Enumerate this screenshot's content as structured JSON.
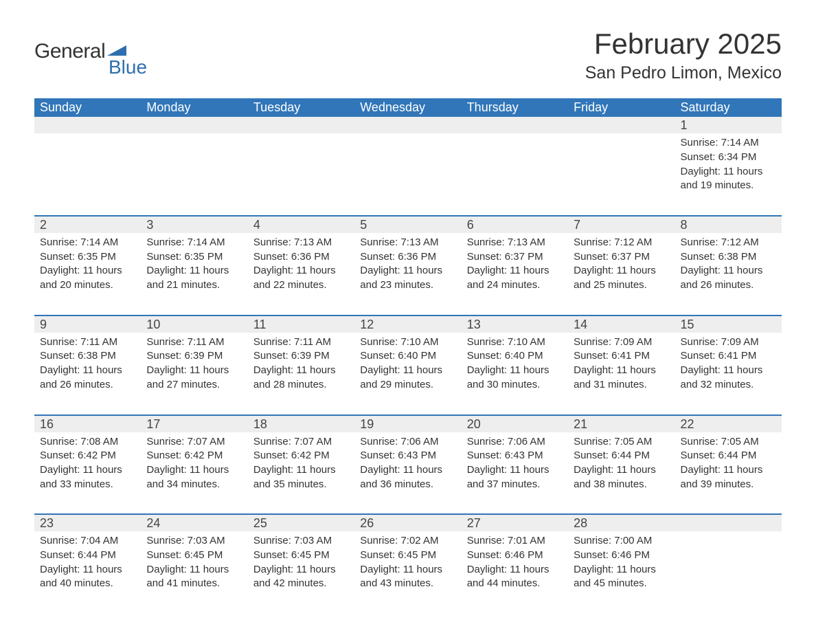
{
  "brand": {
    "line1": "General",
    "line2": "Blue",
    "logo_color": "#2f6faf"
  },
  "title": "February 2025",
  "location": "San Pedro Limon, Mexico",
  "colors": {
    "header_bg": "#3176b9",
    "header_text": "#ffffff",
    "daynum_bg": "#eeeeee",
    "week_divider": "#3176b9",
    "body_text": "#333333",
    "page_bg": "#ffffff"
  },
  "calendar": {
    "columns": [
      "Sunday",
      "Monday",
      "Tuesday",
      "Wednesday",
      "Thursday",
      "Friday",
      "Saturday"
    ],
    "weeks": [
      [
        null,
        null,
        null,
        null,
        null,
        null,
        {
          "day": 1,
          "sunrise": "7:14 AM",
          "sunset": "6:34 PM",
          "daylight": "11 hours and 19 minutes."
        }
      ],
      [
        {
          "day": 2,
          "sunrise": "7:14 AM",
          "sunset": "6:35 PM",
          "daylight": "11 hours and 20 minutes."
        },
        {
          "day": 3,
          "sunrise": "7:14 AM",
          "sunset": "6:35 PM",
          "daylight": "11 hours and 21 minutes."
        },
        {
          "day": 4,
          "sunrise": "7:13 AM",
          "sunset": "6:36 PM",
          "daylight": "11 hours and 22 minutes."
        },
        {
          "day": 5,
          "sunrise": "7:13 AM",
          "sunset": "6:36 PM",
          "daylight": "11 hours and 23 minutes."
        },
        {
          "day": 6,
          "sunrise": "7:13 AM",
          "sunset": "6:37 PM",
          "daylight": "11 hours and 24 minutes."
        },
        {
          "day": 7,
          "sunrise": "7:12 AM",
          "sunset": "6:37 PM",
          "daylight": "11 hours and 25 minutes."
        },
        {
          "day": 8,
          "sunrise": "7:12 AM",
          "sunset": "6:38 PM",
          "daylight": "11 hours and 26 minutes."
        }
      ],
      [
        {
          "day": 9,
          "sunrise": "7:11 AM",
          "sunset": "6:38 PM",
          "daylight": "11 hours and 26 minutes."
        },
        {
          "day": 10,
          "sunrise": "7:11 AM",
          "sunset": "6:39 PM",
          "daylight": "11 hours and 27 minutes."
        },
        {
          "day": 11,
          "sunrise": "7:11 AM",
          "sunset": "6:39 PM",
          "daylight": "11 hours and 28 minutes."
        },
        {
          "day": 12,
          "sunrise": "7:10 AM",
          "sunset": "6:40 PM",
          "daylight": "11 hours and 29 minutes."
        },
        {
          "day": 13,
          "sunrise": "7:10 AM",
          "sunset": "6:40 PM",
          "daylight": "11 hours and 30 minutes."
        },
        {
          "day": 14,
          "sunrise": "7:09 AM",
          "sunset": "6:41 PM",
          "daylight": "11 hours and 31 minutes."
        },
        {
          "day": 15,
          "sunrise": "7:09 AM",
          "sunset": "6:41 PM",
          "daylight": "11 hours and 32 minutes."
        }
      ],
      [
        {
          "day": 16,
          "sunrise": "7:08 AM",
          "sunset": "6:42 PM",
          "daylight": "11 hours and 33 minutes."
        },
        {
          "day": 17,
          "sunrise": "7:07 AM",
          "sunset": "6:42 PM",
          "daylight": "11 hours and 34 minutes."
        },
        {
          "day": 18,
          "sunrise": "7:07 AM",
          "sunset": "6:42 PM",
          "daylight": "11 hours and 35 minutes."
        },
        {
          "day": 19,
          "sunrise": "7:06 AM",
          "sunset": "6:43 PM",
          "daylight": "11 hours and 36 minutes."
        },
        {
          "day": 20,
          "sunrise": "7:06 AM",
          "sunset": "6:43 PM",
          "daylight": "11 hours and 37 minutes."
        },
        {
          "day": 21,
          "sunrise": "7:05 AM",
          "sunset": "6:44 PM",
          "daylight": "11 hours and 38 minutes."
        },
        {
          "day": 22,
          "sunrise": "7:05 AM",
          "sunset": "6:44 PM",
          "daylight": "11 hours and 39 minutes."
        }
      ],
      [
        {
          "day": 23,
          "sunrise": "7:04 AM",
          "sunset": "6:44 PM",
          "daylight": "11 hours and 40 minutes."
        },
        {
          "day": 24,
          "sunrise": "7:03 AM",
          "sunset": "6:45 PM",
          "daylight": "11 hours and 41 minutes."
        },
        {
          "day": 25,
          "sunrise": "7:03 AM",
          "sunset": "6:45 PM",
          "daylight": "11 hours and 42 minutes."
        },
        {
          "day": 26,
          "sunrise": "7:02 AM",
          "sunset": "6:45 PM",
          "daylight": "11 hours and 43 minutes."
        },
        {
          "day": 27,
          "sunrise": "7:01 AM",
          "sunset": "6:46 PM",
          "daylight": "11 hours and 44 minutes."
        },
        {
          "day": 28,
          "sunrise": "7:00 AM",
          "sunset": "6:46 PM",
          "daylight": "11 hours and 45 minutes."
        },
        null
      ]
    ],
    "labels": {
      "sunrise": "Sunrise:",
      "sunset": "Sunset:",
      "daylight": "Daylight:"
    }
  }
}
